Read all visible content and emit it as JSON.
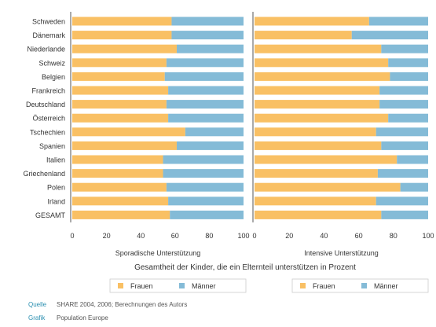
{
  "chart_data": {
    "type": "bar",
    "stacked": true,
    "orientation": "horizontal",
    "categories": [
      "Schweden",
      "Dänemark",
      "Niederlande",
      "Schweiz",
      "Belgien",
      "Frankreich",
      "Deutschland",
      "Österreich",
      "Tschechien",
      "Spanien",
      "Italien",
      "Griechenland",
      "Polen",
      "Irland",
      "GESAMT"
    ],
    "xlim": [
      0,
      100
    ],
    "xticks": [
      "0",
      "20",
      "40",
      "60",
      "80",
      "100"
    ],
    "xlabel": "Gesamtheit der Kinder, die ein Elternteil unterstützen in Prozent",
    "grid": false,
    "colors": {
      "Frauen": "#f9c064",
      "Männer": "#84bbd7"
    },
    "panels": [
      {
        "title": "Sporadische Unterstützung",
        "series": [
          {
            "name": "Frauen",
            "values": [
              58,
              58,
              61,
              55,
              54,
              56,
              55,
              56,
              66,
              61,
              53,
              53,
              55,
              56,
              57
            ]
          },
          {
            "name": "Männer",
            "values": [
              42,
              42,
              39,
              45,
              46,
              44,
              45,
              44,
              34,
              39,
              47,
              47,
              45,
              44,
              43
            ]
          }
        ]
      },
      {
        "title": "Intensive Unterstützung",
        "series": [
          {
            "name": "Frauen",
            "values": [
              66,
              56,
              73,
              77,
              78,
              72,
              72,
              77,
              70,
              73,
              82,
              71,
              84,
              70,
              73
            ]
          },
          {
            "name": "Männer",
            "values": [
              34,
              44,
              27,
              23,
              22,
              28,
              28,
              23,
              30,
              27,
              18,
              29,
              16,
              30,
              27
            ]
          }
        ]
      }
    ],
    "legend": {
      "placement": "bottom",
      "items": [
        "Frauen",
        "Männer"
      ]
    }
  },
  "footer": {
    "source_label": "Quelle",
    "source_value": "SHARE 2004, 2006; Berechnungen des Autors",
    "graphic_label": "Grafik",
    "graphic_value": "Population Europe"
  }
}
